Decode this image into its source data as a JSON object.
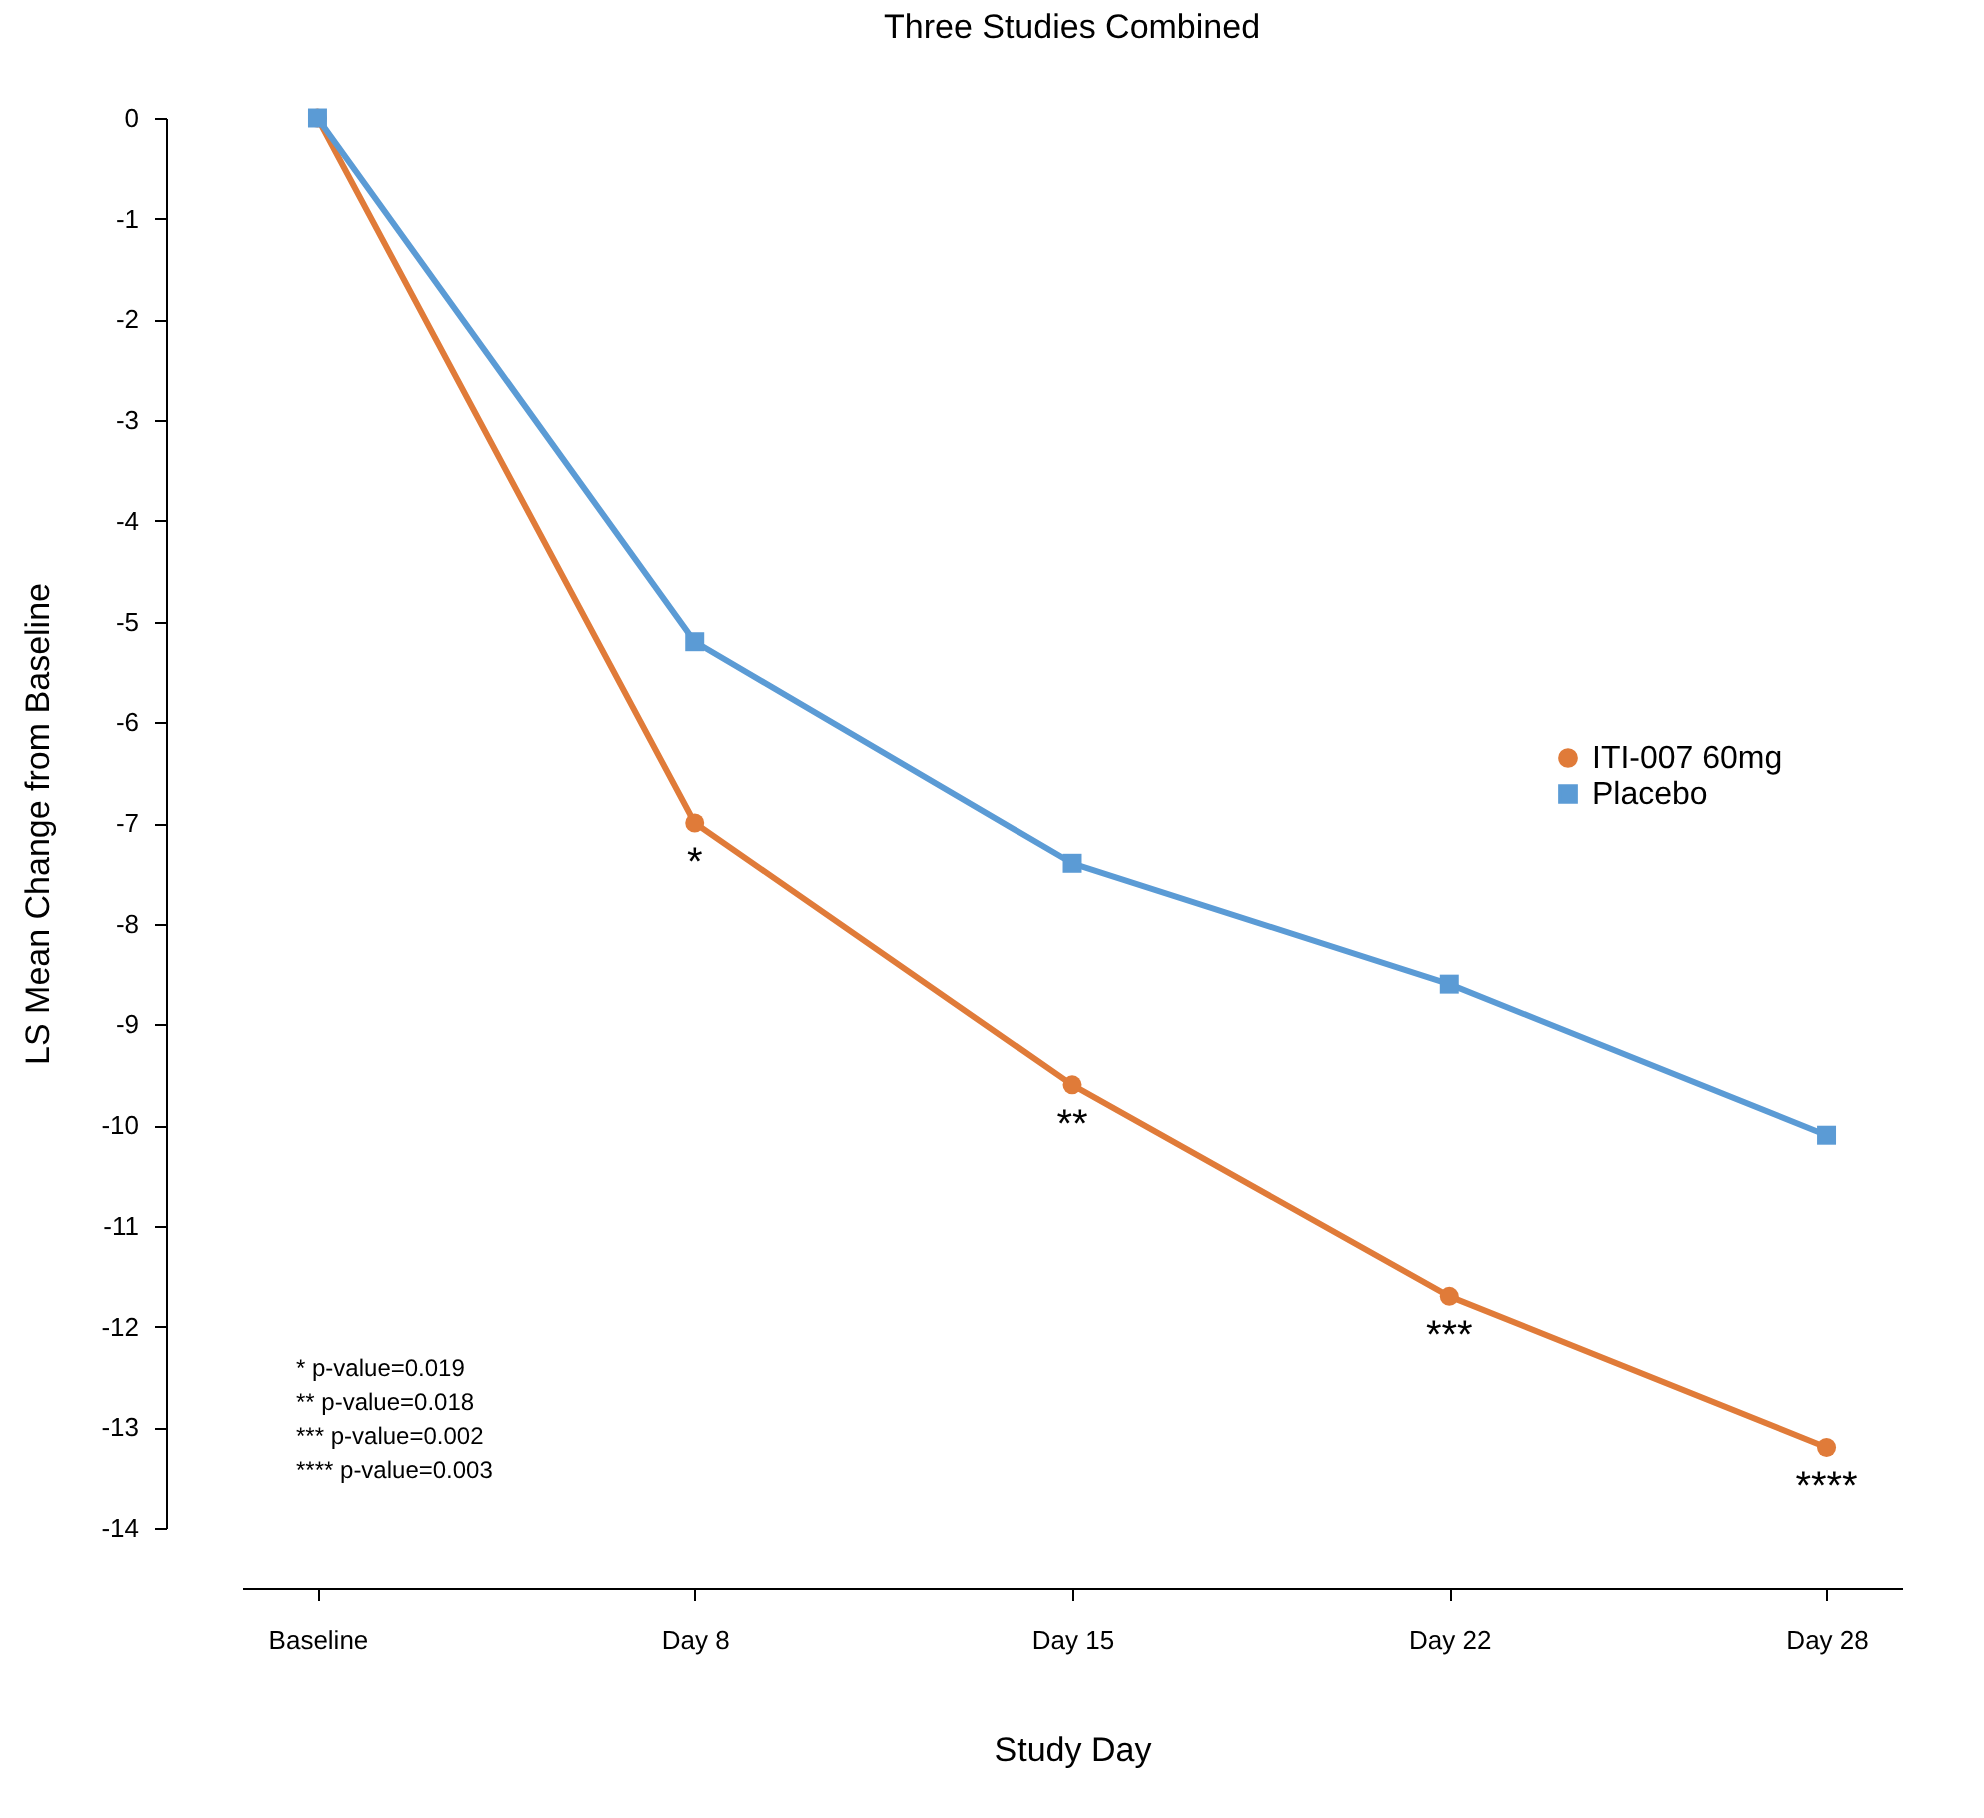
{
  "chart_data": {
    "type": "line",
    "title": "Three Studies Combined",
    "xlabel": "Study Day",
    "ylabel": "LS Mean Change from Baseline",
    "categories": [
      "Baseline",
      "Day 8",
      "Day 15",
      "Day 22",
      "Day 28"
    ],
    "ylim": [
      -14,
      0
    ],
    "yticks": [
      0,
      -1,
      -2,
      -3,
      -4,
      -5,
      -6,
      -7,
      -8,
      -9,
      -10,
      -11,
      -12,
      -13,
      -14
    ],
    "series": [
      {
        "name": "ITI-007 60mg",
        "color": "#e07b39",
        "marker": "circle",
        "values": [
          0,
          -7.0,
          -9.6,
          -11.7,
          -13.2
        ]
      },
      {
        "name": "Placebo",
        "color": "#5b9bd5",
        "marker": "square",
        "values": [
          0,
          -5.2,
          -7.4,
          -8.6,
          -10.1
        ]
      }
    ],
    "annotations": [
      {
        "text": "*",
        "x": "Day 8",
        "y": -7.0
      },
      {
        "text": "**",
        "x": "Day 15",
        "y": -9.6
      },
      {
        "text": "***",
        "x": "Day 22",
        "y": -11.7
      },
      {
        "text": "****",
        "x": "Day 28",
        "y": -13.2
      },
      "*    p-value=0.019",
      "**   p-value=0.018",
      "***  p-value=0.002",
      "**** p-value=0.003"
    ],
    "grid": false,
    "legend": "right"
  }
}
